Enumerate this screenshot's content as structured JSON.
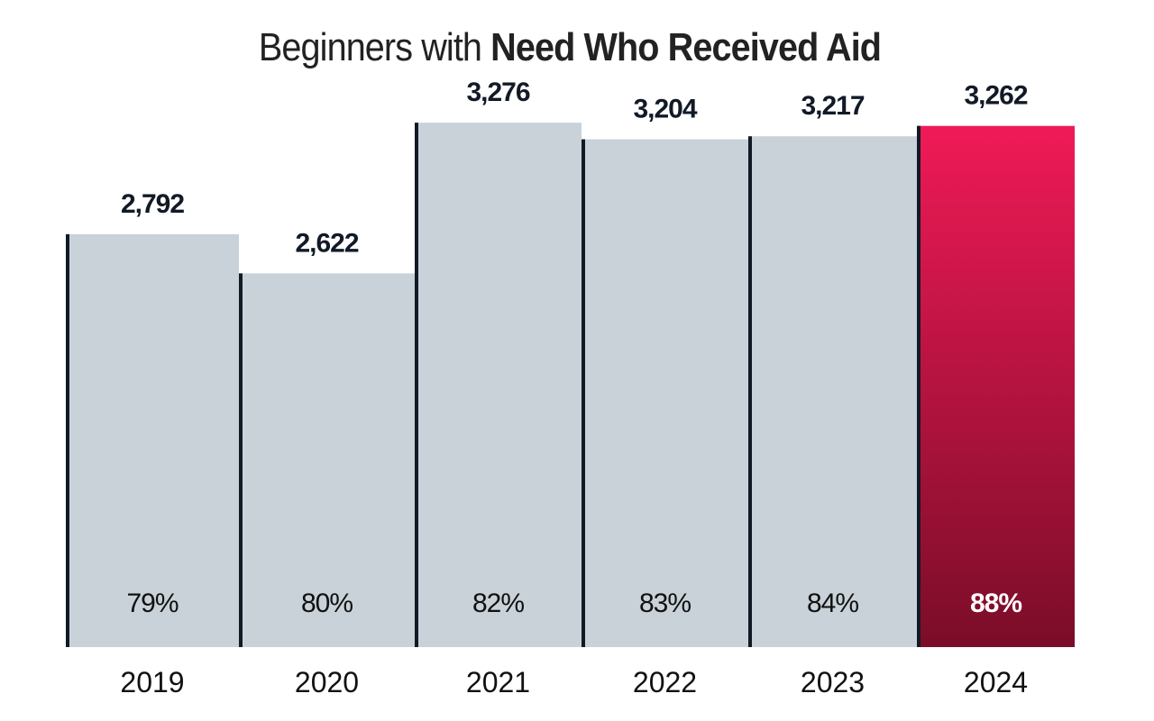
{
  "chart_data": {
    "type": "bar",
    "title_light": "Beginners with",
    "title_bold": "Need Who Received Aid",
    "categories": [
      "2019",
      "2020",
      "2021",
      "2022",
      "2023",
      "2024"
    ],
    "values": [
      2792,
      2622,
      3276,
      3204,
      3217,
      3262
    ],
    "value_labels": [
      "2,792",
      "2,622",
      "3,276",
      "3,204",
      "3,217",
      "3,262"
    ],
    "percent_labels": [
      "79%",
      "80%",
      "82%",
      "83%",
      "84%",
      "88%"
    ],
    "highlight_index": 5,
    "ylim": [
      1000,
      3300
    ],
    "grid": false,
    "xlabel": "",
    "ylabel": "",
    "colors": {
      "bar": "#c9d2d8",
      "edge": "#111a26",
      "highlight_top": "#ef1a57",
      "highlight_bottom": "#7a0d28"
    }
  }
}
